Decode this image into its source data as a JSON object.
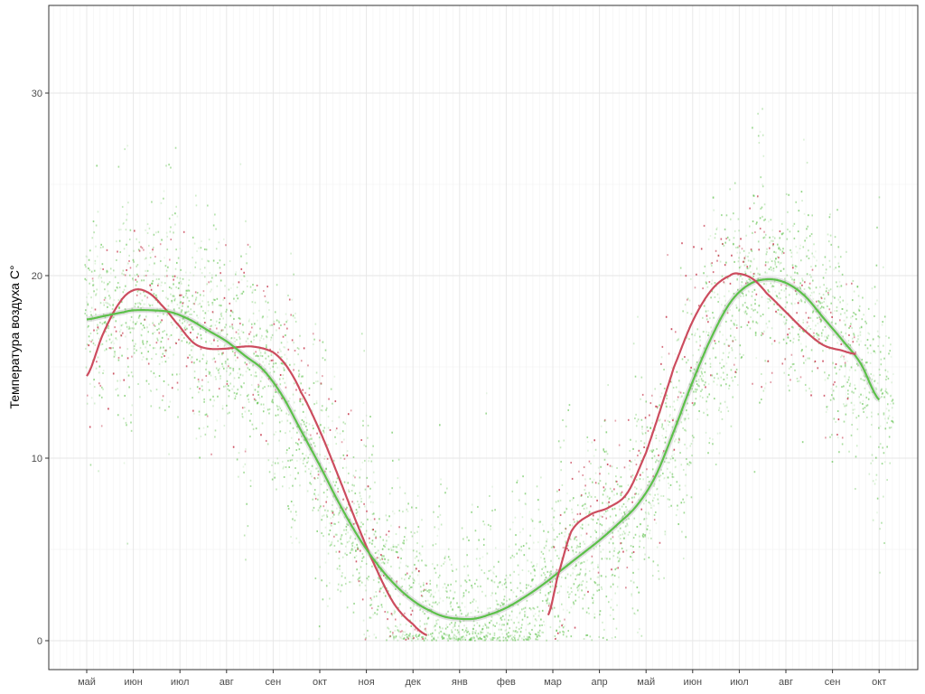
{
  "chart_data": {
    "type": "scatter",
    "title": "",
    "xlabel": "",
    "ylabel": "Температура  воздуха  С°",
    "ylim": [
      0,
      35
    ],
    "yticks": [
      0,
      10,
      20,
      30
    ],
    "grid": true,
    "legend": "none",
    "x_categories": [
      "май",
      "июн",
      "июл",
      "авг",
      "сен",
      "окт",
      "ноя",
      "дек",
      "янв",
      "фев",
      "мар",
      "апр",
      "май",
      "июн",
      "июл",
      "авг",
      "сен",
      "окт"
    ],
    "series": [
      {
        "style": "smooth-line",
        "color": "#cc4c5e",
        "x": [
          0.0,
          0.35,
          0.7,
          1.0,
          1.3,
          1.6,
          2.0,
          2.3,
          2.6,
          3.0,
          3.3,
          3.6,
          4.0,
          4.3,
          4.6,
          5.0,
          5.4,
          5.8,
          6.2,
          6.6,
          7.0,
          7.3
        ],
        "y": [
          14.5,
          16.8,
          18.5,
          19.2,
          19.1,
          18.4,
          17.2,
          16.3,
          16.0,
          16.0,
          16.1,
          16.1,
          15.8,
          15.0,
          13.6,
          11.5,
          9.0,
          6.4,
          4.0,
          2.0,
          0.9,
          0.3
        ]
      },
      {
        "style": "smooth-line",
        "color": "#5cc14a",
        "x": [
          0.0,
          0.4,
          0.8,
          1.0,
          1.4,
          1.8,
          2.2,
          2.6,
          3.0,
          3.4,
          3.8,
          4.2,
          4.6,
          5.0,
          5.4,
          5.8,
          6.2,
          6.6,
          7.0,
          7.4,
          7.7,
          8.0,
          8.3,
          8.6,
          9.0,
          9.4,
          9.8,
          10.2,
          10.6,
          11.0,
          11.4,
          11.8,
          12.2,
          12.6,
          13.0,
          13.4,
          13.8,
          14.2,
          14.6,
          15.0,
          15.4,
          15.8,
          16.2,
          16.6,
          17.0
        ],
        "y": [
          17.6,
          17.8,
          18.0,
          18.1,
          18.1,
          18.0,
          17.6,
          17.0,
          16.4,
          15.6,
          14.8,
          13.4,
          11.5,
          9.6,
          7.6,
          5.8,
          4.3,
          3.1,
          2.2,
          1.6,
          1.3,
          1.2,
          1.2,
          1.4,
          1.8,
          2.4,
          3.1,
          3.9,
          4.7,
          5.5,
          6.4,
          7.4,
          9.0,
          11.5,
          14.2,
          16.6,
          18.5,
          19.5,
          19.8,
          19.6,
          18.9,
          17.7,
          16.5,
          15.2,
          13.2
        ]
      },
      {
        "style": "smooth-line",
        "color": "#cc4c5e",
        "x": [
          9.9,
          10.1,
          10.4,
          10.8,
          11.2,
          11.6,
          12.0,
          12.3,
          12.6,
          13.0,
          13.4,
          13.8,
          14.0,
          14.3,
          14.6,
          15.0,
          15.4,
          15.8,
          16.2,
          16.5
        ],
        "y": [
          1.4,
          3.5,
          6.0,
          6.9,
          7.3,
          8.1,
          10.3,
          12.6,
          15.0,
          17.5,
          19.2,
          20.0,
          20.1,
          19.8,
          19.0,
          18.0,
          17.0,
          16.2,
          15.9,
          15.7
        ]
      }
    ]
  }
}
